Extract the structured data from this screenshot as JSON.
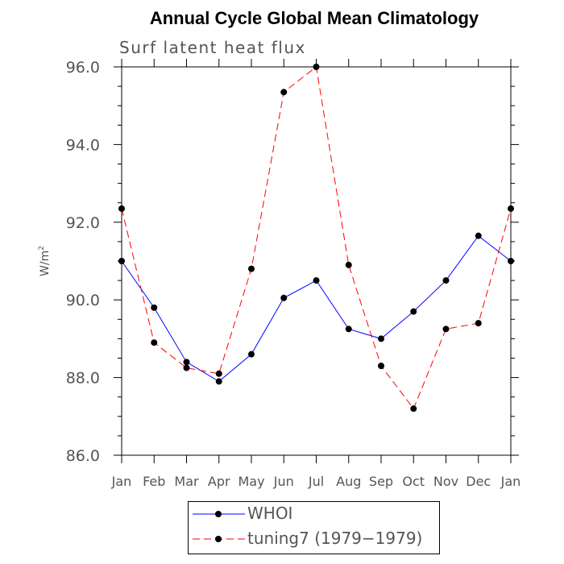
{
  "chart_data": {
    "type": "line",
    "title": "Annual Cycle Global Mean Climatology",
    "subtitle": "Surf latent heat flux",
    "xlabel": "",
    "ylabel": "W/m",
    "ylabel_superscript": "2",
    "categories": [
      "Jan",
      "Feb",
      "Mar",
      "Apr",
      "May",
      "Jun",
      "Jul",
      "Aug",
      "Sep",
      "Oct",
      "Nov",
      "Dec",
      "Jan"
    ],
    "ylim": [
      86.0,
      96.0
    ],
    "yticks": [
      "86.0",
      "88.0",
      "90.0",
      "92.0",
      "94.0",
      "96.0"
    ],
    "grid": false,
    "legend_position": "bottom",
    "series": [
      {
        "name": "WHOI",
        "color": "#0000ff",
        "dash": "solid",
        "marker": "filled-circle",
        "values": [
          91.0,
          89.8,
          88.4,
          87.9,
          88.6,
          90.05,
          90.5,
          89.25,
          89.0,
          89.7,
          90.5,
          91.65,
          91.0
        ]
      },
      {
        "name": "tuning7 (1979−1979)",
        "color": "#ff0000",
        "dash": "dashed",
        "marker": "filled-circle",
        "values": [
          92.35,
          88.9,
          88.25,
          88.1,
          90.8,
          95.35,
          96.0,
          90.9,
          88.3,
          87.2,
          89.25,
          89.4,
          92.35
        ]
      }
    ]
  }
}
